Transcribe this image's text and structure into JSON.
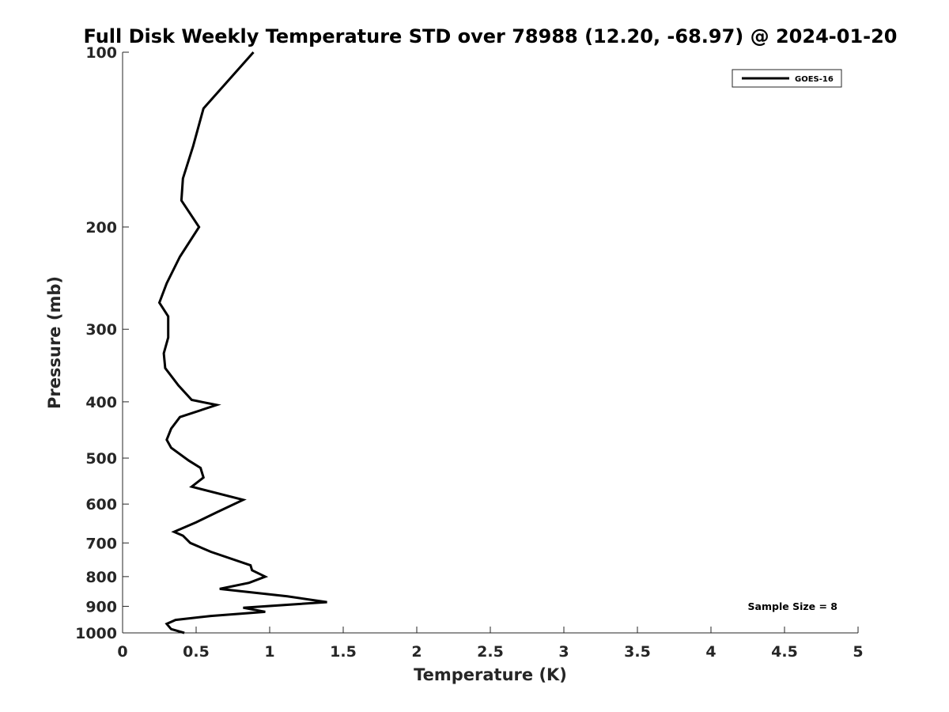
{
  "chart_data": {
    "type": "line",
    "title": "Full Disk Weekly Temperature STD over 78988 (12.20, -68.97) @ 2024-01-20",
    "xlabel": "Temperature (K)",
    "ylabel": "Pressure (mb)",
    "xlim": [
      0,
      5
    ],
    "ylim": [
      100,
      1000
    ],
    "y_scale": "log",
    "y_reversed": true,
    "x_ticks": [
      "0",
      "0.5",
      "1",
      "1.5",
      "2",
      "2.5",
      "3",
      "3.5",
      "4",
      "4.5",
      "5"
    ],
    "y_ticks": [
      "100",
      "200",
      "300",
      "400",
      "500",
      "600",
      "700",
      "800",
      "900",
      "1000"
    ],
    "grid": false,
    "legend_position": "top-right",
    "series": [
      {
        "name": "GOES-16",
        "color": "#000000",
        "points": [
          [
            0.89,
            100
          ],
          [
            0.55,
            125
          ],
          [
            0.48,
            145
          ],
          [
            0.41,
            165
          ],
          [
            0.4,
            180
          ],
          [
            0.52,
            200
          ],
          [
            0.39,
            225
          ],
          [
            0.3,
            250
          ],
          [
            0.25,
            270
          ],
          [
            0.31,
            285
          ],
          [
            0.31,
            310
          ],
          [
            0.28,
            330
          ],
          [
            0.29,
            350
          ],
          [
            0.38,
            375
          ],
          [
            0.47,
            397
          ],
          [
            0.64,
            405
          ],
          [
            0.39,
            425
          ],
          [
            0.33,
            445
          ],
          [
            0.3,
            465
          ],
          [
            0.33,
            480
          ],
          [
            0.45,
            505
          ],
          [
            0.53,
            520
          ],
          [
            0.55,
            540
          ],
          [
            0.47,
            560
          ],
          [
            0.82,
            590
          ],
          [
            0.64,
            620
          ],
          [
            0.5,
            645
          ],
          [
            0.35,
            670
          ],
          [
            0.41,
            680
          ],
          [
            0.46,
            700
          ],
          [
            0.6,
            725
          ],
          [
            0.87,
            765
          ],
          [
            0.88,
            780
          ],
          [
            0.97,
            800
          ],
          [
            0.86,
            820
          ],
          [
            0.66,
            840
          ],
          [
            1.12,
            865
          ],
          [
            1.39,
            885
          ],
          [
            0.82,
            905
          ],
          [
            0.97,
            920
          ],
          [
            0.6,
            935
          ],
          [
            0.36,
            950
          ],
          [
            0.3,
            965
          ],
          [
            0.33,
            985
          ],
          [
            0.42,
            1000
          ]
        ]
      }
    ],
    "annotation": "Sample Size = 8"
  }
}
